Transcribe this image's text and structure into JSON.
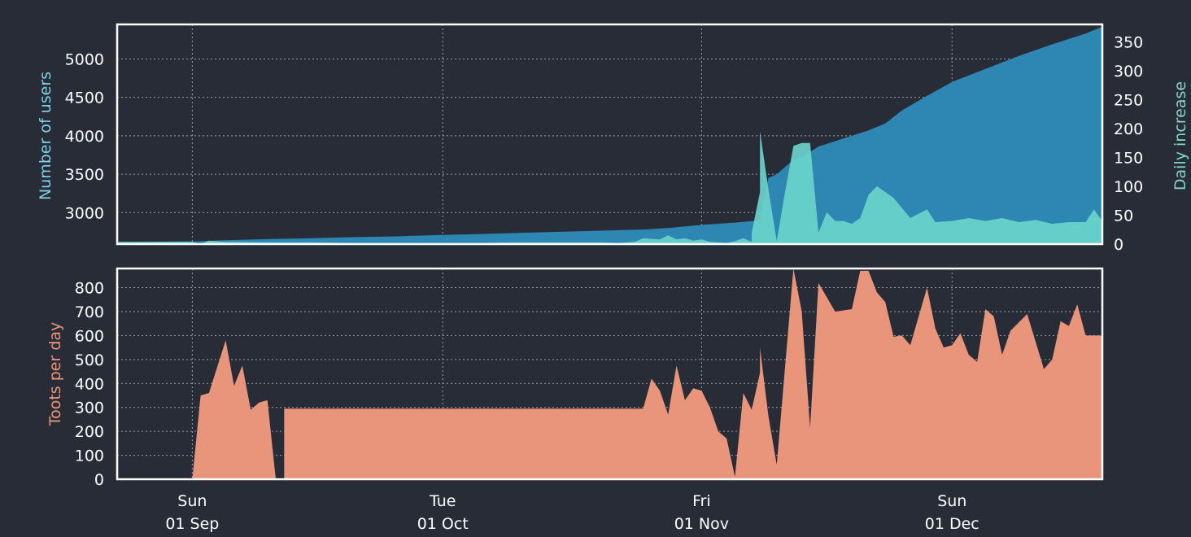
{
  "chart_data": [
    {
      "type": "area",
      "ylabel": "Number of users",
      "y2label": "Daily increase",
      "ylim": [
        2590,
        5450
      ],
      "y2lim": [
        0,
        380
      ],
      "yticks": [
        3000,
        3500,
        4000,
        4500,
        5000
      ],
      "y2ticks": [
        0,
        50,
        100,
        150,
        200,
        250,
        300,
        350
      ],
      "xlim": [
        "2019-08-23",
        "2019-12-19"
      ],
      "grid": true,
      "colors": {
        "users": "#2e87b2",
        "increase": "#6bd4cb",
        "ylabel": "#7fd0e6",
        "y2label": "#7fd8cc"
      },
      "series": [
        {
          "key": "users",
          "x": [
            "2019-08-23",
            "2019-09-01",
            "2019-09-05",
            "2019-09-10",
            "2019-09-15",
            "2019-09-20",
            "2019-09-25",
            "2019-10-01",
            "2019-10-05",
            "2019-10-10",
            "2019-10-15",
            "2019-10-20",
            "2019-10-25",
            "2019-10-28",
            "2019-11-01",
            "2019-11-05",
            "2019-11-07",
            "2019-11-08",
            "2019-11-09",
            "2019-11-10",
            "2019-11-12",
            "2019-11-13",
            "2019-11-15",
            "2019-11-17",
            "2019-11-19",
            "2019-11-21",
            "2019-11-23",
            "2019-11-25",
            "2019-11-28",
            "2019-12-01",
            "2019-12-05",
            "2019-12-09",
            "2019-12-13",
            "2019-12-17",
            "2019-12-19"
          ],
          "values": [
            2618,
            2625,
            2640,
            2655,
            2665,
            2680,
            2690,
            2710,
            2720,
            2735,
            2750,
            2765,
            2780,
            2800,
            2840,
            2870,
            2890,
            2900,
            3450,
            3500,
            3690,
            3720,
            3860,
            3930,
            4000,
            4070,
            4160,
            4330,
            4520,
            4700,
            4870,
            5040,
            5190,
            5330,
            5420
          ]
        },
        {
          "key": "increase",
          "x": [
            "2019-08-23",
            "2019-09-01",
            "2019-09-02",
            "2019-09-03",
            "2019-09-05",
            "2019-09-10",
            "2019-09-15",
            "2019-09-20",
            "2019-09-25",
            "2019-10-01",
            "2019-10-05",
            "2019-10-10",
            "2019-10-15",
            "2019-10-20",
            "2019-10-22",
            "2019-10-24",
            "2019-10-25",
            "2019-10-27",
            "2019-10-28",
            "2019-10-29",
            "2019-10-30",
            "2019-10-31",
            "2019-11-01",
            "2019-11-02",
            "2019-11-03",
            "2019-11-04",
            "2019-11-05",
            "2019-11-06",
            "2019-11-07",
            "2019-11-07",
            "2019-11-08",
            "2019-11-08",
            "2019-11-09",
            "2019-11-10",
            "2019-11-11",
            "2019-11-12",
            "2019-11-13",
            "2019-11-14",
            "2019-11-15",
            "2019-11-16",
            "2019-11-17",
            "2019-11-18",
            "2019-11-19",
            "2019-11-20",
            "2019-11-21",
            "2019-11-22",
            "2019-11-24",
            "2019-11-26",
            "2019-11-28",
            "2019-11-29",
            "2019-12-01",
            "2019-12-03",
            "2019-12-05",
            "2019-12-07",
            "2019-12-09",
            "2019-12-11",
            "2019-12-13",
            "2019-12-15",
            "2019-12-17",
            "2019-12-18",
            "2019-12-19"
          ],
          "values": [
            4,
            4,
            0,
            6,
            4,
            3,
            3,
            2,
            2,
            2,
            2,
            3,
            3,
            3,
            2,
            4,
            10,
            8,
            15,
            8,
            10,
            6,
            8,
            4,
            3,
            2,
            5,
            10,
            4,
            20,
            90,
            195,
            95,
            5,
            90,
            170,
            175,
            175,
            20,
            55,
            40,
            40,
            35,
            45,
            85,
            100,
            80,
            45,
            60,
            38,
            40,
            45,
            40,
            45,
            38,
            42,
            35,
            38,
            38,
            60,
            40
          ]
        }
      ]
    },
    {
      "type": "area",
      "ylabel": "Toots per day",
      "ylim": [
        0,
        880
      ],
      "yticks": [
        0,
        100,
        200,
        300,
        400,
        500,
        600,
        700,
        800
      ],
      "xlim": [
        "2019-08-23",
        "2019-12-19"
      ],
      "xticks": [
        {
          "date": "2019-09-01",
          "day": "Sun",
          "label": "01 Sep"
        },
        {
          "date": "2019-10-01",
          "day": "Tue",
          "label": "01 Oct"
        },
        {
          "date": "2019-11-01",
          "day": "Fri",
          "label": "01 Nov"
        },
        {
          "date": "2019-12-01",
          "day": "Sun",
          "label": "01 Dec"
        }
      ],
      "grid": true,
      "colors": {
        "fill": "#e8957b",
        "ylabel": "#e8957b"
      },
      "segments": [
        {
          "x": [
            "2019-08-23",
            "2019-09-01",
            "2019-09-02",
            "2019-09-03",
            "2019-09-05",
            "2019-09-06",
            "2019-09-07",
            "2019-09-08",
            "2019-09-09",
            "2019-09-10",
            "2019-09-11",
            "2019-09-12"
          ],
          "values": [
            0,
            0,
            350,
            360,
            580,
            390,
            475,
            290,
            320,
            330,
            0,
            0
          ]
        },
        {
          "x": [
            "2019-09-12",
            "2019-10-25",
            "2019-10-26",
            "2019-10-27",
            "2019-10-28",
            "2019-10-29",
            "2019-10-30",
            "2019-10-31",
            "2019-11-01",
            "2019-11-02",
            "2019-11-03",
            "2019-11-04",
            "2019-11-05",
            "2019-11-06",
            "2019-11-07",
            "2019-11-08",
            "2019-11-08",
            "2019-11-09",
            "2019-11-10",
            "2019-11-12",
            "2019-11-13",
            "2019-11-14",
            "2019-11-15",
            "2019-11-17",
            "2019-11-19",
            "2019-11-20",
            "2019-11-21",
            "2019-11-22",
            "2019-11-23",
            "2019-11-24",
            "2019-11-25",
            "2019-11-26",
            "2019-11-28",
            "2019-11-29",
            "2019-11-30",
            "2019-12-01",
            "2019-12-02",
            "2019-12-03",
            "2019-12-04",
            "2019-12-05",
            "2019-12-06",
            "2019-12-07",
            "2019-12-08",
            "2019-12-10",
            "2019-12-12",
            "2019-12-13",
            "2019-12-14",
            "2019-12-15",
            "2019-12-16",
            "2019-12-17",
            "2019-12-18",
            "2019-12-19"
          ],
          "values": [
            295,
            295,
            420,
            370,
            270,
            475,
            330,
            380,
            370,
            300,
            200,
            170,
            10,
            360,
            290,
            445,
            550,
            265,
            60,
            880,
            700,
            215,
            820,
            700,
            710,
            870,
            870,
            780,
            740,
            595,
            600,
            560,
            800,
            630,
            550,
            560,
            610,
            520,
            490,
            710,
            680,
            520,
            620,
            690,
            460,
            500,
            660,
            640,
            730,
            600,
            600,
            600
          ]
        }
      ]
    }
  ]
}
